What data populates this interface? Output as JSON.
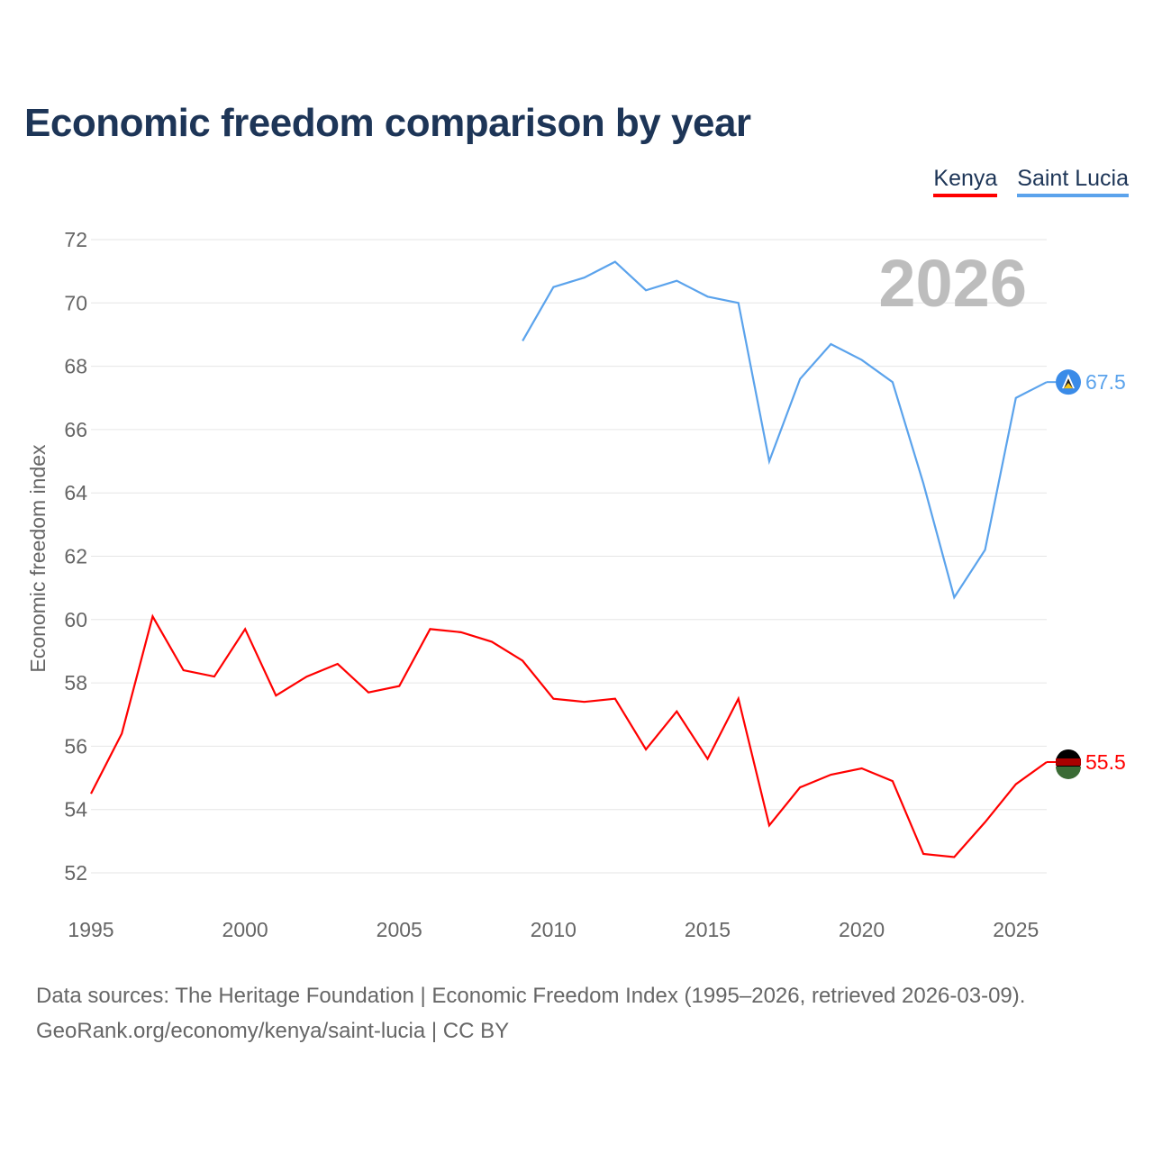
{
  "title": "Economic freedom comparison by year",
  "footer": {
    "line1": "Data sources: The Heritage Foundation | Economic Freedom Index (1995–2026, retrieved 2026-03-09).",
    "line2": "GeoRank.org/economy/kenya/saint-lucia | CC BY"
  },
  "chart_data": {
    "type": "line",
    "title": "Economic freedom comparison by year",
    "xlabel": "",
    "ylabel": "Economic freedom index",
    "xlim": [
      1995,
      2026
    ],
    "ylim": [
      52,
      72
    ],
    "xticks": [
      1995,
      2000,
      2005,
      2010,
      2015,
      2020,
      2025
    ],
    "yticks": [
      52,
      54,
      56,
      58,
      60,
      62,
      64,
      66,
      68,
      70,
      72
    ],
    "year_label": "2026",
    "legend_position": "top-right",
    "grid": true,
    "series": [
      {
        "name": "Kenya",
        "color": "#ff0000",
        "end_label": "55.5",
        "x": [
          1995,
          1996,
          1997,
          1998,
          1999,
          2000,
          2001,
          2002,
          2003,
          2004,
          2005,
          2006,
          2007,
          2008,
          2009,
          2010,
          2011,
          2012,
          2013,
          2014,
          2015,
          2016,
          2017,
          2018,
          2019,
          2020,
          2021,
          2022,
          2023,
          2024,
          2025,
          2026
        ],
        "values": [
          54.5,
          56.4,
          60.1,
          58.4,
          58.2,
          59.7,
          57.6,
          58.2,
          58.6,
          57.7,
          57.9,
          59.7,
          59.6,
          59.3,
          58.7,
          57.5,
          57.4,
          57.5,
          55.9,
          57.1,
          55.6,
          57.5,
          53.5,
          54.7,
          55.1,
          55.3,
          54.9,
          52.6,
          52.5,
          53.6,
          54.8,
          55.5
        ]
      },
      {
        "name": "Saint Lucia",
        "color": "#5ba3ec",
        "end_label": "67.5",
        "x": [
          2009,
          2010,
          2011,
          2012,
          2013,
          2014,
          2015,
          2016,
          2017,
          2018,
          2019,
          2020,
          2021,
          2022,
          2023,
          2024,
          2025,
          2026
        ],
        "values": [
          68.8,
          70.5,
          70.8,
          71.3,
          70.4,
          70.7,
          70.2,
          70.0,
          65.0,
          67.6,
          68.7,
          68.2,
          67.5,
          64.3,
          60.7,
          62.2,
          67.0,
          67.5
        ]
      }
    ]
  }
}
